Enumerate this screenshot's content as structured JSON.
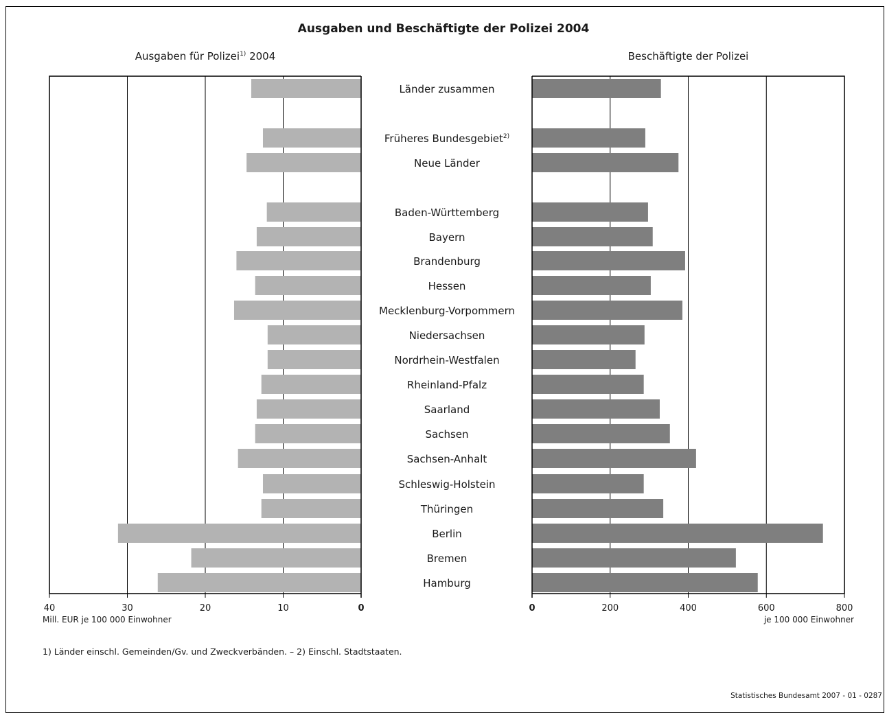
{
  "title": "Ausgaben und Beschäftigte der Polizei 2004",
  "left_panel": {
    "title_main": "Ausgaben für Polizei",
    "title_sup": "1)",
    "title_year": " 2004",
    "unit": "Mill. EUR je 100 000 Einwohner"
  },
  "right_panel": {
    "title": "Beschäftigte der Polizei",
    "unit": "je 100 000 Einwohner"
  },
  "footnote": "1) Länder einschl. Gemeinden/Gv. und Zweckverbänden. – 2) Einschl. Stadtstaaten.",
  "source": "Statistisches Bundesamt 2007 - 01 - 0287",
  "colors": {
    "left_bar": "#b3b3b3",
    "right_bar": "#7f7f7f",
    "axis": "#000000"
  },
  "chart_data": [
    {
      "type": "bar",
      "orientation": "horizontal-reversed",
      "title": "Ausgaben für Polizei 2004",
      "xlabel": "Mill. EUR je 100 000 Einwohner",
      "xlim": [
        0,
        40
      ],
      "ticks": [
        40,
        30,
        20,
        10,
        0
      ],
      "grid": true,
      "categories": [
        "Länder zusammen",
        "Früheres Bundesgebiet",
        "Neue Länder",
        "Baden-Württemberg",
        "Bayern",
        "Brandenburg",
        "Hessen",
        "Mecklenburg-Vorpommern",
        "Niedersachsen",
        "Nordrhein-Westfalen",
        "Rheinland-Pfalz",
        "Saarland",
        "Sachsen",
        "Sachsen-Anhalt",
        "Schleswig-Holstein",
        "Thüringen",
        "Berlin",
        "Bremen",
        "Hamburg"
      ],
      "category_superscripts": [
        "",
        "2)",
        "",
        "",
        "",
        "",
        "",
        "",
        "",
        "",
        "",
        "",
        "",
        "",
        "",
        "",
        "",
        "",
        ""
      ],
      "values": [
        14.1,
        12.6,
        14.7,
        12.1,
        13.4,
        16.0,
        13.6,
        16.3,
        12.0,
        12.0,
        12.8,
        13.4,
        13.6,
        15.8,
        12.6,
        12.8,
        31.2,
        21.8,
        26.1
      ]
    },
    {
      "type": "bar",
      "orientation": "horizontal",
      "title": "Beschäftigte der Polizei",
      "xlabel": "je 100 000 Einwohner",
      "xlim": [
        0,
        800
      ],
      "ticks": [
        0,
        200,
        400,
        600,
        800
      ],
      "grid": true,
      "categories": [
        "Länder zusammen",
        "Früheres Bundesgebiet",
        "Neue Länder",
        "Baden-Württemberg",
        "Bayern",
        "Brandenburg",
        "Hessen",
        "Mecklenburg-Vorpommern",
        "Niedersachsen",
        "Nordrhein-Westfalen",
        "Rheinland-Pfalz",
        "Saarland",
        "Sachsen",
        "Sachsen-Anhalt",
        "Schleswig-Holstein",
        "Thüringen",
        "Berlin",
        "Bremen",
        "Hamburg"
      ],
      "values": [
        330,
        290,
        375,
        297,
        309,
        392,
        304,
        385,
        288,
        265,
        286,
        327,
        353,
        420,
        286,
        336,
        745,
        522,
        578
      ]
    }
  ]
}
